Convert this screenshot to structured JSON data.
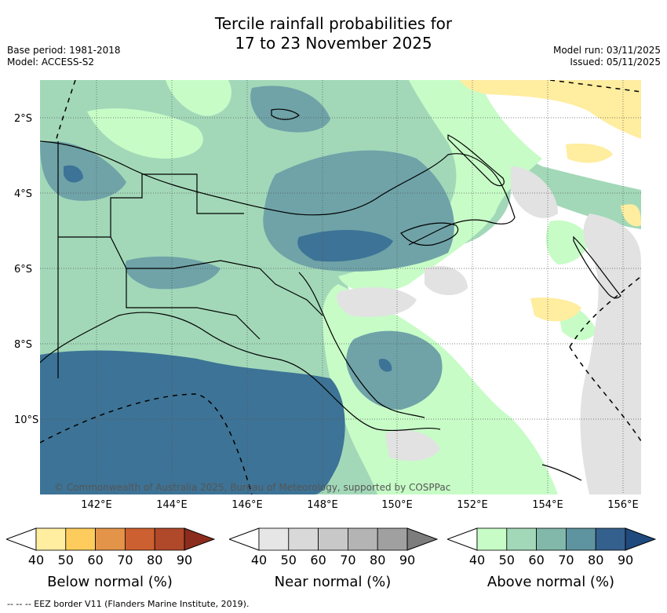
{
  "title_line1": "Tercile rainfall probabilities for",
  "title_line2": "17 to 23 November 2025",
  "meta_left": [
    "Base period: 1981-2018",
    "Model: ACCESS-S2"
  ],
  "meta_right": [
    "Model run: 03/11/2025",
    "Issued: 05/11/2025"
  ],
  "lat_labels": [
    "2°S",
    "4°S",
    "6°S",
    "8°S",
    "10°S"
  ],
  "lon_labels": [
    "142°E",
    "144°E",
    "146°E",
    "148°E",
    "150°E",
    "152°E",
    "154°E",
    "156°E"
  ],
  "copyright": "© Commonwealth of Australia 2025, Bureau of Meteorology, supported by COSPPac",
  "legends": [
    {
      "title": "Below normal (%)",
      "ticks": [
        "40",
        "50",
        "60",
        "70",
        "80",
        "90"
      ],
      "colors": [
        "#ffeda0",
        "#fecc5c",
        "#e39448",
        "#cc6030",
        "#b0482a",
        "#8b2c1c"
      ]
    },
    {
      "title": "Near normal (%)",
      "ticks": [
        "40",
        "50",
        "60",
        "70",
        "80",
        "90"
      ],
      "colors": [
        "#e6e6e6",
        "#d9d9d9",
        "#c8c8c8",
        "#b4b4b4",
        "#a0a0a0",
        "#7d7d7d"
      ]
    },
    {
      "title": "Above normal (%)",
      "ticks": [
        "40",
        "50",
        "60",
        "70",
        "80",
        "90"
      ],
      "colors": [
        "#c7fcc7",
        "#a2d8b8",
        "#82b8aa",
        "#5e94a0",
        "#34608e",
        "#1f4a7e"
      ]
    }
  ],
  "footnote": "--  --  -- EEZ border V11 (Flanders Marine Institute, 2019).",
  "colors": {
    "above50": "#c7fcc7",
    "above60": "#a2d8b8",
    "above70": "#6fa3a8",
    "above80": "#3d7396",
    "near50": "#e2e2e2",
    "below50": "#ffeda0"
  }
}
